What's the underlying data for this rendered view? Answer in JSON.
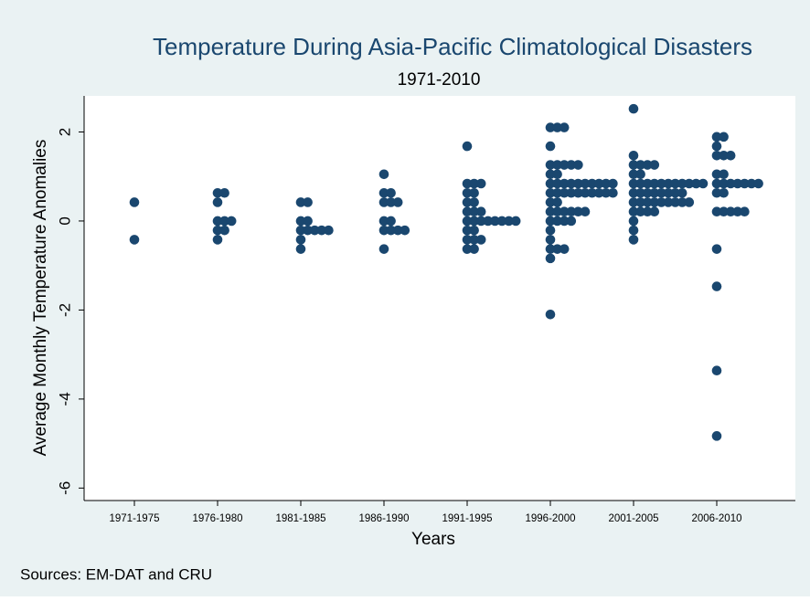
{
  "chart_data": {
    "type": "dot",
    "title": "Temperature During Asia-Pacific Climatological Disasters",
    "subtitle": "1971-2010",
    "y_label": "Average Monthly Temperature Anomalies",
    "x_label": "Years",
    "note": "Sources: EM-DAT and CRU",
    "color": "#1a476f",
    "ylim": [
      -6.28,
      2.81
    ],
    "yticks": [
      2,
      0,
      -2,
      -4,
      -6
    ],
    "groups": [
      {
        "category": "1971-1975",
        "values": [
          0.42,
          -0.42
        ]
      },
      {
        "category": "1976-1980",
        "values": [
          0.63,
          0.63,
          0.42,
          0,
          0,
          0,
          -0.21,
          -0.21,
          -0.42
        ]
      },
      {
        "category": "1981-1985",
        "values": [
          0.42,
          0.42,
          0,
          0,
          -0.21,
          -0.21,
          -0.21,
          -0.21,
          -0.21,
          -0.42,
          -0.63
        ]
      },
      {
        "category": "1986-1990",
        "values": [
          1.05,
          0.63,
          0.63,
          0.42,
          0.42,
          0.42,
          0,
          0,
          -0.21,
          -0.21,
          -0.21,
          -0.21,
          -0.63
        ]
      },
      {
        "category": "1991-1995",
        "values": [
          1.68,
          0.84,
          0.84,
          0.84,
          0.63,
          0.63,
          0.42,
          0.42,
          0.21,
          0.21,
          0.21,
          0,
          0,
          0,
          0,
          0,
          0,
          0,
          0,
          -0.21,
          -0.21,
          -0.42,
          -0.42,
          -0.42,
          -0.63,
          -0.63
        ]
      },
      {
        "category": "1996-2000",
        "values": [
          2.1,
          2.1,
          2.1,
          1.68,
          1.26,
          1.26,
          1.26,
          1.26,
          1.26,
          1.05,
          1.05,
          0.84,
          0.84,
          0.84,
          0.84,
          0.84,
          0.84,
          0.84,
          0.84,
          0.84,
          0.84,
          0.63,
          0.63,
          0.63,
          0.63,
          0.63,
          0.63,
          0.63,
          0.63,
          0.63,
          0.63,
          0.42,
          0.42,
          0.21,
          0.21,
          0.21,
          0.21,
          0.21,
          0.21,
          0,
          0,
          0,
          0,
          -0.21,
          -0.42,
          -0.63,
          -0.63,
          -0.63,
          -0.84,
          -2.1
        ]
      },
      {
        "category": "2001-2005",
        "values": [
          2.52,
          1.47,
          1.26,
          1.26,
          1.26,
          1.26,
          1.05,
          1.05,
          0.84,
          0.84,
          0.84,
          0.84,
          0.84,
          0.84,
          0.84,
          0.84,
          0.84,
          0.84,
          0.84,
          0.63,
          0.63,
          0.63,
          0.63,
          0.63,
          0.63,
          0.63,
          0.63,
          0.42,
          0.42,
          0.42,
          0.42,
          0.42,
          0.42,
          0.42,
          0.42,
          0.42,
          0.21,
          0.21,
          0.21,
          0.21,
          0,
          -0.21,
          -0.42
        ]
      },
      {
        "category": "2006-2010",
        "values": [
          1.89,
          1.89,
          1.68,
          1.47,
          1.47,
          1.47,
          1.05,
          1.05,
          0.84,
          0.84,
          0.84,
          0.84,
          0.84,
          0.84,
          0.84,
          0.63,
          0.63,
          0.21,
          0.21,
          0.21,
          0.21,
          0.21,
          -0.63,
          -1.47,
          -3.36,
          -4.83
        ]
      }
    ]
  }
}
